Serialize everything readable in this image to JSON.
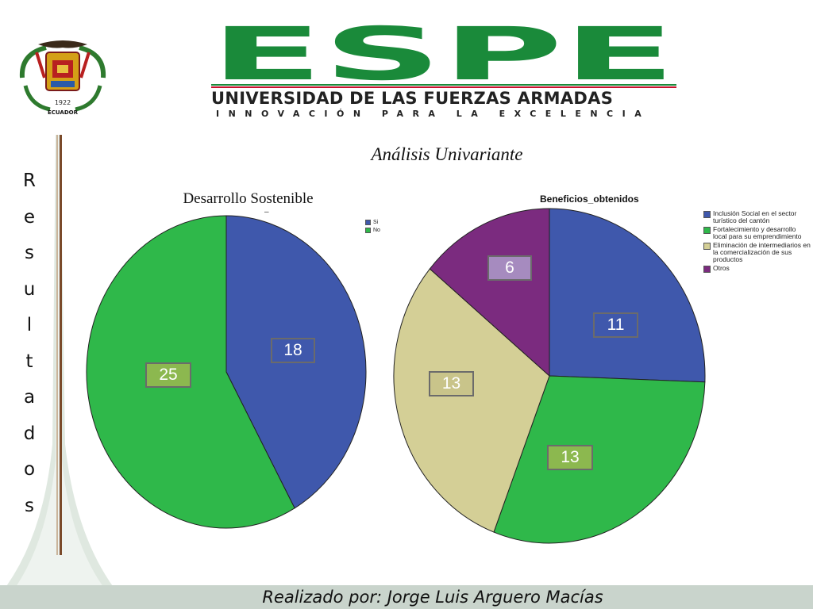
{
  "header": {
    "crest_text_year": "1922",
    "crest_text_country": "ECUADOR",
    "logo_word": "ESPE",
    "logo_subtitle": "UNIVERSIDAD DE LAS FUERZAS ARMADAS",
    "logo_tagline": "INNOVACIÓN PARA LA EXCELENCIA"
  },
  "side_word": [
    "R",
    "e",
    "s",
    "u",
    "l",
    "t",
    "a",
    "d",
    "o",
    "s"
  ],
  "title": "Análisis Univariante",
  "footer": "Realizado por: Jorge Luis Arguero Macías",
  "colors": {
    "blue": "#3f58ac",
    "green": "#2fb84a",
    "tan": "#d4cf96",
    "purple": "#7b2b7f",
    "brand_green": "#1a8a3a",
    "brand_red": "#c8102e"
  },
  "chart_data": [
    {
      "type": "pie",
      "title": "Desarrollo Sostenible",
      "categories": [
        "Si",
        "No"
      ],
      "values": [
        18,
        25
      ],
      "colors": [
        "#3f58ac",
        "#2fb84a"
      ],
      "data_labels": [
        "18",
        "25"
      ],
      "label_colors": [
        "#3f58ac",
        "#8cb84f"
      ],
      "legend_position": "top-right"
    },
    {
      "type": "pie",
      "title": "Beneficios_obtenidos",
      "categories": [
        "Inclusión Social en el sector turístico del cantón",
        "Fortalecimiento y desarrollo local para su emprendimiento",
        "Eliminación de intermediarios en la comercialización de sus productos",
        "Otros"
      ],
      "values": [
        11,
        13,
        13,
        6
      ],
      "colors": [
        "#3f58ac",
        "#2fb84a",
        "#d4cf96",
        "#7b2b7f"
      ],
      "data_labels": [
        "11",
        "13",
        "13",
        "6"
      ],
      "label_colors": [
        "#3f58ac",
        "#8cb84f",
        "#c9c48a",
        "#a68bbf"
      ],
      "legend_position": "right"
    }
  ]
}
